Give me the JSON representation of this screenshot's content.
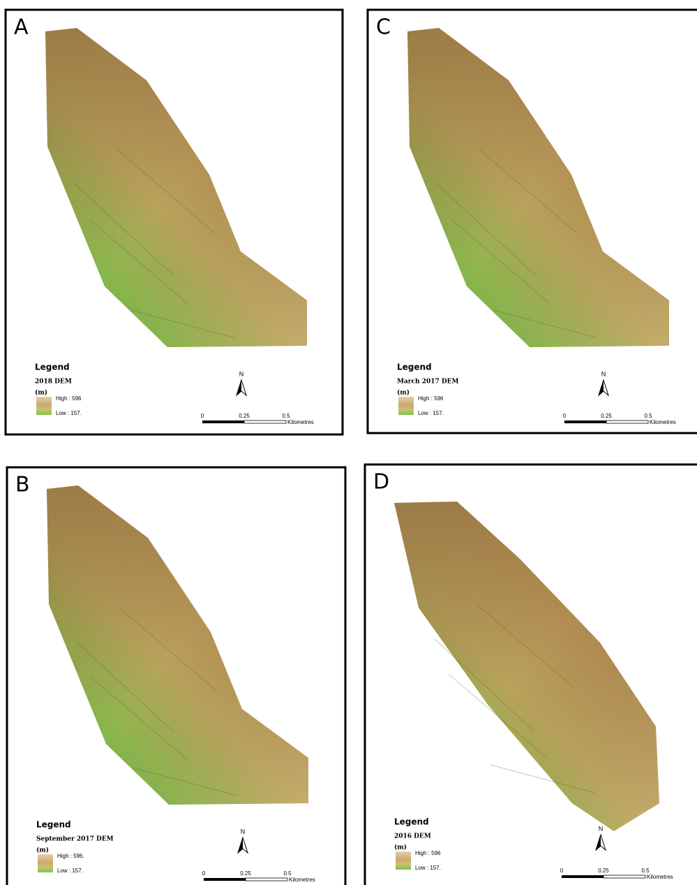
{
  "panels": [
    {
      "label": "A",
      "legend_heading": "Legend",
      "dem_title": "2018 DEM",
      "unit": "(m)",
      "high": "High : 596",
      "low": "Low : 157.",
      "north": "N",
      "scale": [
        "0",
        "0.25",
        "0.5"
      ],
      "scale_unit": "Kilometres"
    },
    {
      "label": "C",
      "legend_heading": "Legend",
      "dem_title": "March 2017 DEM",
      "unit": "(m)",
      "high": "High : 596",
      "low": "Low : 157.",
      "north": "N",
      "scale": [
        "0",
        "0.25",
        "0.5"
      ],
      "scale_unit": "Kilometres"
    },
    {
      "label": "B",
      "legend_heading": "Legend",
      "dem_title": "September 2017 DEM",
      "unit": "(m)",
      "high": "High : 596.",
      "low": "Low : 157.",
      "north": "N",
      "scale": [
        "0",
        "0.25",
        "0.5"
      ],
      "scale_unit": "Kilometres"
    },
    {
      "label": "D",
      "legend_heading": "Legend",
      "dem_title": "2016 DEM",
      "unit": "(m)",
      "high": "High : 596",
      "low": "Low : 157.",
      "north": "N",
      "scale": [
        "0",
        "0.25",
        "0.5"
      ],
      "scale_unit": "Kilometres"
    }
  ]
}
